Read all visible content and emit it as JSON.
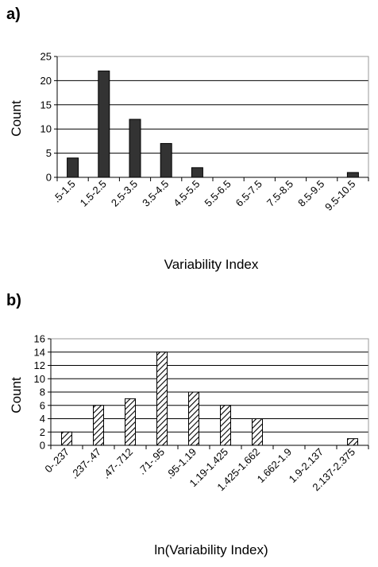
{
  "chart_data": [
    {
      "type": "bar",
      "panel_label": "a)",
      "xlabel": "Variability Index",
      "ylabel": "Count",
      "ylim": [
        0,
        25
      ],
      "yticks": [
        0,
        5,
        10,
        15,
        20,
        25
      ],
      "grid": true,
      "categories": [
        ".5-1.5",
        "1.5-2.5",
        "2.5-3.5",
        "3.5-4.5",
        "4.5-5.5",
        "5.5-6.5",
        "6.5-7.5",
        "7.5-8.5",
        "8.5-9.5",
        "9.5-10.5"
      ],
      "values": [
        4,
        22,
        12,
        7,
        2,
        0,
        0,
        0,
        0,
        1
      ],
      "bar_color": "#333333"
    },
    {
      "type": "bar",
      "panel_label": "b)",
      "xlabel": "ln(Variability Index)",
      "ylabel": "Count",
      "ylim": [
        0,
        16
      ],
      "yticks": [
        0,
        2,
        4,
        6,
        8,
        10,
        12,
        14,
        16
      ],
      "grid": true,
      "categories": [
        "0-.237",
        ".237-.47",
        ".47-.712",
        ".71-.95",
        ".95-1.19",
        "1.19-1.425",
        "1.425-1.662",
        "1.662-1.9",
        "1.9-2.137",
        "2.137-2.375"
      ],
      "values": [
        2,
        6,
        7,
        14,
        8,
        6,
        4,
        0,
        0,
        1
      ],
      "bar_pattern": "diagonal-hatch"
    }
  ]
}
